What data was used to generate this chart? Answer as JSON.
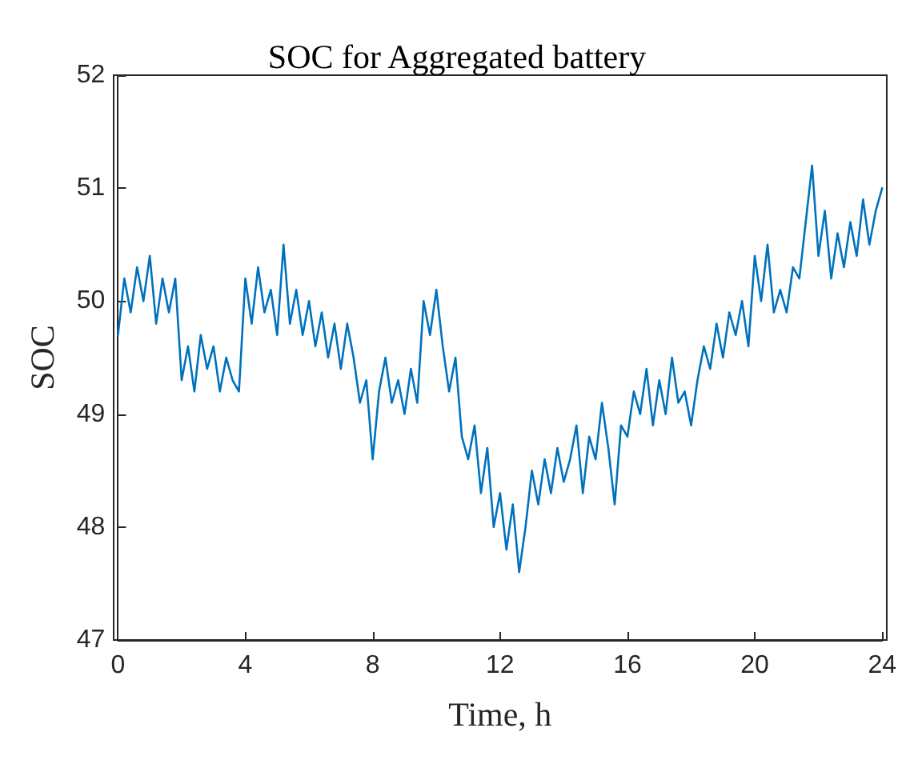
{
  "chart_data": {
    "type": "line",
    "title": "SOC for Aggregated battery",
    "xlabel": "Time, h",
    "ylabel": "SOC",
    "x": [
      0,
      0.2,
      0.4,
      0.6,
      0.8,
      1,
      1.2,
      1.4,
      1.6,
      1.8,
      2,
      2.2,
      2.4,
      2.6,
      2.8,
      3,
      3.2,
      3.4,
      3.6,
      3.8,
      4,
      4.2,
      4.4,
      4.6,
      4.8,
      5,
      5.2,
      5.4,
      5.6,
      5.8,
      6,
      6.2,
      6.4,
      6.6,
      6.8,
      7,
      7.2,
      7.4,
      7.6,
      7.8,
      8,
      8.2,
      8.4,
      8.6,
      8.8,
      9,
      9.2,
      9.4,
      9.6,
      9.8,
      10,
      10.2,
      10.4,
      10.6,
      10.8,
      11,
      11.2,
      11.4,
      11.6,
      11.8,
      12,
      12.2,
      12.4,
      12.6,
      12.8,
      13,
      13.2,
      13.4,
      13.6,
      13.8,
      14,
      14.2,
      14.4,
      14.6,
      14.8,
      15,
      15.2,
      15.4,
      15.6,
      15.8,
      16,
      16.2,
      16.4,
      16.6,
      16.8,
      17,
      17.2,
      17.4,
      17.6,
      17.8,
      18,
      18.2,
      18.4,
      18.6,
      18.8,
      19,
      19.2,
      19.4,
      19.6,
      19.8,
      20,
      20.2,
      20.4,
      20.6,
      20.8,
      21,
      21.2,
      21.4,
      21.6,
      21.8,
      22,
      22.2,
      22.4,
      22.6,
      22.8,
      23,
      23.2,
      23.4,
      23.6,
      23.8,
      24
    ],
    "series": [
      {
        "color": "#0072bd",
        "values": [
          49.7,
          50.2,
          49.9,
          50.3,
          50.0,
          50.4,
          49.8,
          50.2,
          49.9,
          50.2,
          49.3,
          49.6,
          49.2,
          49.7,
          49.4,
          49.6,
          49.2,
          49.5,
          49.3,
          49.2,
          50.2,
          49.8,
          50.3,
          49.9,
          50.1,
          49.7,
          50.5,
          49.8,
          50.1,
          49.7,
          50.0,
          49.6,
          49.9,
          49.5,
          49.8,
          49.4,
          49.8,
          49.5,
          49.1,
          49.3,
          48.6,
          49.2,
          49.5,
          49.1,
          49.3,
          49.0,
          49.4,
          49.1,
          50.0,
          49.7,
          50.1,
          49.6,
          49.2,
          49.5,
          48.8,
          48.6,
          48.9,
          48.3,
          48.7,
          48.0,
          48.3,
          47.8,
          48.2,
          47.6,
          48.0,
          48.5,
          48.2,
          48.6,
          48.3,
          48.7,
          48.4,
          48.6,
          48.9,
          48.3,
          48.8,
          48.6,
          49.1,
          48.7,
          48.2,
          48.9,
          48.8,
          49.2,
          49.0,
          49.4,
          48.9,
          49.3,
          49.0,
          49.5,
          49.1,
          49.2,
          48.9,
          49.3,
          49.6,
          49.4,
          49.8,
          49.5,
          49.9,
          49.7,
          50.0,
          49.6,
          50.4,
          50.0,
          50.5,
          49.9,
          50.1,
          49.9,
          50.3,
          50.2,
          50.7,
          51.2,
          50.4,
          50.8,
          50.2,
          50.6,
          50.3,
          50.7,
          50.4,
          50.9,
          50.5,
          50.8,
          51.0
        ]
      }
    ],
    "xlim": [
      0,
      24
    ],
    "xticks": [
      0,
      4,
      8,
      12,
      16,
      20,
      24
    ],
    "ylim": [
      47,
      52
    ],
    "yticks": [
      47,
      48,
      49,
      50,
      51,
      52
    ],
    "grid": false,
    "marker": "none",
    "line_style": "solid"
  }
}
